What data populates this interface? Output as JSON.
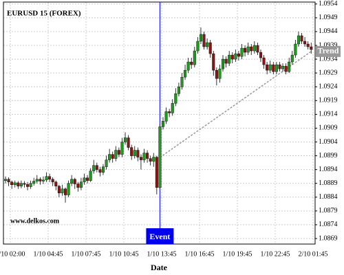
{
  "chart_data": {
    "type": "candlestick",
    "title": "EURUSD 15 (FOREX)",
    "watermark": "www.delkos.com",
    "x_label": "Date",
    "x_labels": [
      "1/10 02:00",
      "1/10 04:45",
      "1/10 07:45",
      "1/10 10:45",
      "1/10 13:45",
      "1/10 16:45",
      "1/10 19:45",
      "1/10 22:45",
      "2/10 01:45"
    ],
    "ylim": [
      1.0867,
      1.09547
    ],
    "yticks": [
      1.0869,
      1.0874,
      1.0879,
      1.0884,
      1.0889,
      1.0894,
      1.0899,
      1.0904,
      1.0909,
      1.0914,
      1.0919,
      1.0924,
      1.0929,
      1.0934,
      1.0939,
      1.0944,
      1.0949,
      1.0954
    ],
    "grid": true,
    "up_color": "#1f9a1f",
    "down_color": "#8b1414",
    "event": {
      "label": "Event",
      "color": "#0000ee"
    },
    "trend": {
      "label": "Trend",
      "start": 1.08984,
      "end": 1.09368,
      "color": "#999999"
    },
    "ohlc": [
      [
        1.089,
        1.08915,
        1.0889,
        1.08905
      ],
      [
        1.08905,
        1.08912,
        1.0888,
        1.08895
      ],
      [
        1.08895,
        1.089,
        1.0887,
        1.08885
      ],
      [
        1.08885,
        1.089,
        1.08875,
        1.08892
      ],
      [
        1.08892,
        1.08898,
        1.0887,
        1.0888
      ],
      [
        1.0888,
        1.089,
        1.08872,
        1.0889
      ],
      [
        1.0889,
        1.08898,
        1.08875,
        1.08886
      ],
      [
        1.08886,
        1.08895,
        1.08865,
        1.08878
      ],
      [
        1.08878,
        1.089,
        1.0887,
        1.0889
      ],
      [
        1.0889,
        1.0891,
        1.08882,
        1.08898
      ],
      [
        1.08898,
        1.0892,
        1.0889,
        1.08905
      ],
      [
        1.08905,
        1.08912,
        1.08885,
        1.08898
      ],
      [
        1.08898,
        1.08915,
        1.08888,
        1.08902
      ],
      [
        1.08902,
        1.0893,
        1.08895,
        1.08915
      ],
      [
        1.08915,
        1.08925,
        1.08895,
        1.08905
      ],
      [
        1.08905,
        1.08912,
        1.0888,
        1.08895
      ],
      [
        1.08895,
        1.089,
        1.08865,
        1.0888
      ],
      [
        1.0888,
        1.08885,
        1.0884,
        1.08855
      ],
      [
        1.08855,
        1.08885,
        1.08845,
        1.0887
      ],
      [
        1.0887,
        1.08875,
        1.0882,
        1.08848
      ],
      [
        1.08848,
        1.089,
        1.0884,
        1.0889
      ],
      [
        1.0889,
        1.0892,
        1.0888,
        1.08905
      ],
      [
        1.08905,
        1.0891,
        1.0887,
        1.08888
      ],
      [
        1.08888,
        1.08895,
        1.0886,
        1.08875
      ],
      [
        1.08875,
        1.0891,
        1.08865,
        1.08895
      ],
      [
        1.08895,
        1.08925,
        1.08885,
        1.0891
      ],
      [
        1.0891,
        1.0892,
        1.0889,
        1.089
      ],
      [
        1.089,
        1.08945,
        1.08895,
        1.08935
      ],
      [
        1.08935,
        1.08975,
        1.08925,
        1.08955
      ],
      [
        1.08955,
        1.08965,
        1.0893,
        1.0894
      ],
      [
        1.0894,
        1.0895,
        1.08915,
        1.0893
      ],
      [
        1.0893,
        1.0896,
        1.0892,
        1.0895
      ],
      [
        1.0895,
        1.0899,
        1.0894,
        1.08975
      ],
      [
        1.08975,
        1.09015,
        1.08965,
        1.08995
      ],
      [
        1.08995,
        1.09005,
        1.08965,
        1.0898
      ],
      [
        1.0898,
        1.09025,
        1.0897,
        1.0901
      ],
      [
        1.0901,
        1.0902,
        1.08985,
        1.08995
      ],
      [
        1.08995,
        1.09055,
        1.08985,
        1.0904
      ],
      [
        1.0904,
        1.09075,
        1.0903,
        1.09055
      ],
      [
        1.09055,
        1.09065,
        1.0901,
        1.0902
      ],
      [
        1.0902,
        1.0903,
        1.08975,
        1.0899
      ],
      [
        1.0899,
        1.09025,
        1.0898,
        1.0901
      ],
      [
        1.0901,
        1.0902,
        1.0897,
        1.08985
      ],
      [
        1.08985,
        1.08995,
        1.0894,
        1.08975
      ],
      [
        1.08975,
        1.09015,
        1.08965,
        1.09
      ],
      [
        1.09,
        1.0901,
        1.08965,
        1.0898
      ],
      [
        1.0898,
        1.0899,
        1.08955,
        1.0897
      ],
      [
        1.0897,
        1.09,
        1.0895,
        1.08985
      ],
      [
        1.08985,
        1.0899,
        1.0885,
        1.08875
      ],
      [
        1.08875,
        1.09105,
        1.0887,
        1.09095
      ],
      [
        1.09095,
        1.0913,
        1.09085,
        1.09115
      ],
      [
        1.09115,
        1.09165,
        1.09105,
        1.0915
      ],
      [
        1.0915,
        1.0916,
        1.0913,
        1.09145
      ],
      [
        1.09145,
        1.09195,
        1.09135,
        1.0918
      ],
      [
        1.0918,
        1.09235,
        1.0917,
        1.09215
      ],
      [
        1.09215,
        1.09255,
        1.09205,
        1.0924
      ],
      [
        1.0924,
        1.0929,
        1.0923,
        1.09275
      ],
      [
        1.09275,
        1.0932,
        1.09265,
        1.093
      ],
      [
        1.093,
        1.09345,
        1.0929,
        1.0933
      ],
      [
        1.0933,
        1.09345,
        1.09305,
        1.0932
      ],
      [
        1.0932,
        1.09385,
        1.0931,
        1.0937
      ],
      [
        1.0937,
        1.0942,
        1.0936,
        1.09405
      ],
      [
        1.09405,
        1.09455,
        1.09395,
        1.0943
      ],
      [
        1.0943,
        1.0944,
        1.09375,
        1.09385
      ],
      [
        1.09385,
        1.09415,
        1.09375,
        1.094
      ],
      [
        1.094,
        1.0941,
        1.09345,
        1.0936
      ],
      [
        1.0936,
        1.0937,
        1.0928,
        1.093
      ],
      [
        1.093,
        1.0931,
        1.09245,
        1.0927
      ],
      [
        1.0927,
        1.0932,
        1.09255,
        1.09305
      ],
      [
        1.09305,
        1.09355,
        1.09295,
        1.0934
      ],
      [
        1.0934,
        1.0935,
        1.0931,
        1.09325
      ],
      [
        1.09325,
        1.0937,
        1.09315,
        1.09355
      ],
      [
        1.09355,
        1.09365,
        1.09325,
        1.0934
      ],
      [
        1.0934,
        1.09375,
        1.0933,
        1.0936
      ],
      [
        1.0936,
        1.0937,
        1.09335,
        1.0935
      ],
      [
        1.0935,
        1.09395,
        1.0934,
        1.0938
      ],
      [
        1.0938,
        1.0939,
        1.0935,
        1.09365
      ],
      [
        1.09365,
        1.094,
        1.09355,
        1.09385
      ],
      [
        1.09385,
        1.09395,
        1.09355,
        1.0937
      ],
      [
        1.0937,
        1.09405,
        1.0936,
        1.0939
      ],
      [
        1.0939,
        1.094,
        1.09355,
        1.09365
      ],
      [
        1.09365,
        1.09375,
        1.0933,
        1.09345
      ],
      [
        1.09345,
        1.09355,
        1.09305,
        1.0932
      ],
      [
        1.0932,
        1.0933,
        1.09285,
        1.093
      ],
      [
        1.093,
        1.09335,
        1.0929,
        1.0932
      ],
      [
        1.0932,
        1.0933,
        1.09285,
        1.09295
      ],
      [
        1.09295,
        1.0933,
        1.09285,
        1.0932
      ],
      [
        1.0932,
        1.0933,
        1.09295,
        1.09305
      ],
      [
        1.09305,
        1.09325,
        1.09295,
        1.09315
      ],
      [
        1.09315,
        1.09325,
        1.09285,
        1.09295
      ],
      [
        1.09295,
        1.09345,
        1.0929,
        1.0933
      ],
      [
        1.0933,
        1.0937,
        1.0932,
        1.09355
      ],
      [
        1.09355,
        1.0941,
        1.09345,
        1.09395
      ],
      [
        1.09395,
        1.0944,
        1.09385,
        1.09425
      ],
      [
        1.09425,
        1.09435,
        1.09395,
        1.09405
      ],
      [
        1.09405,
        1.0942,
        1.09385,
        1.09395
      ],
      [
        1.09395,
        1.09405,
        1.09375,
        1.09385
      ],
      [
        1.09385,
        1.094,
        1.0936,
        1.09375
      ]
    ]
  }
}
